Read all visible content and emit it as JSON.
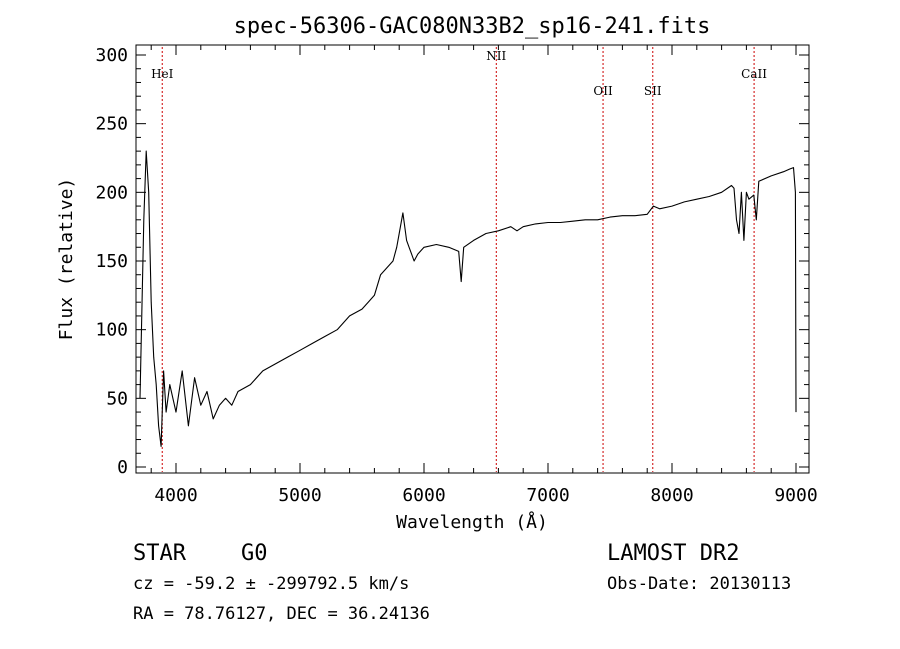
{
  "chart_data": {
    "type": "line",
    "title": "spec-56306-GAC080N33B2_sp16-241.fits",
    "xlabel": "Wavelength (Å)",
    "ylabel": "Flux (relative)",
    "xlim": [
      3700,
      9100
    ],
    "ylim": [
      -5,
      305
    ],
    "xticks": [
      "4000",
      "5000",
      "6000",
      "7000",
      "8000",
      "9000"
    ],
    "yticks": [
      "0",
      "50",
      "100",
      "150",
      "200",
      "250",
      "300"
    ],
    "grid": false,
    "series": [
      {
        "x": [
          3710,
          3740,
          3760,
          3780,
          3800,
          3820,
          3840,
          3860,
          3880,
          3900,
          3920,
          3950,
          4000,
          4050,
          4100,
          4150,
          4200,
          4250,
          4300,
          4350,
          4400,
          4450,
          4500,
          4600,
          4700,
          4800,
          4900,
          5000,
          5100,
          5200,
          5300,
          5400,
          5500,
          5550,
          5600,
          5650,
          5700,
          5750,
          5780,
          5800,
          5830,
          5860,
          5880,
          5900,
          5920,
          5950,
          6000,
          6100,
          6200,
          6280,
          6300,
          6320,
          6400,
          6500,
          6600,
          6700,
          6750,
          6800,
          6900,
          7000,
          7100,
          7200,
          7300,
          7400,
          7500,
          7600,
          7700,
          7800,
          7850,
          7900,
          8000,
          8100,
          8200,
          8300,
          8400,
          8480,
          8500,
          8520,
          8540,
          8560,
          8580,
          8600,
          8620,
          8660,
          8680,
          8700,
          8800,
          8900,
          8950,
          8980,
          8995,
          9000
        ],
        "y": [
          50,
          180,
          230,
          200,
          120,
          80,
          60,
          30,
          15,
          70,
          40,
          60,
          40,
          70,
          30,
          65,
          45,
          55,
          35,
          45,
          50,
          45,
          55,
          60,
          70,
          75,
          80,
          85,
          90,
          95,
          100,
          110,
          115,
          120,
          125,
          140,
          145,
          150,
          160,
          170,
          185,
          165,
          160,
          155,
          150,
          155,
          160,
          162,
          160,
          157,
          135,
          160,
          165,
          170,
          172,
          175,
          172,
          175,
          177,
          178,
          178,
          179,
          180,
          180,
          182,
          183,
          183,
          184,
          190,
          188,
          190,
          193,
          195,
          197,
          200,
          205,
          203,
          180,
          170,
          200,
          165,
          200,
          195,
          198,
          180,
          208,
          212,
          215,
          217,
          218,
          200,
          40
        ]
      }
    ],
    "annotations": [
      {
        "label": "HeI",
        "x": 3889
      },
      {
        "label": "NII",
        "x": 6583
      },
      {
        "label": "OII",
        "x": 7444
      },
      {
        "label": "SII",
        "x": 7845
      },
      {
        "label": "CaII",
        "x": 8662
      }
    ]
  },
  "info": {
    "class_type": "STAR",
    "subclass": "G0",
    "survey": "LAMOST DR2",
    "redshift": "cz = -59.2 ± -299792.5 km/s",
    "obs_date": "Obs-Date: 20130113",
    "coords": "RA =  78.76127, DEC =  36.24136"
  }
}
